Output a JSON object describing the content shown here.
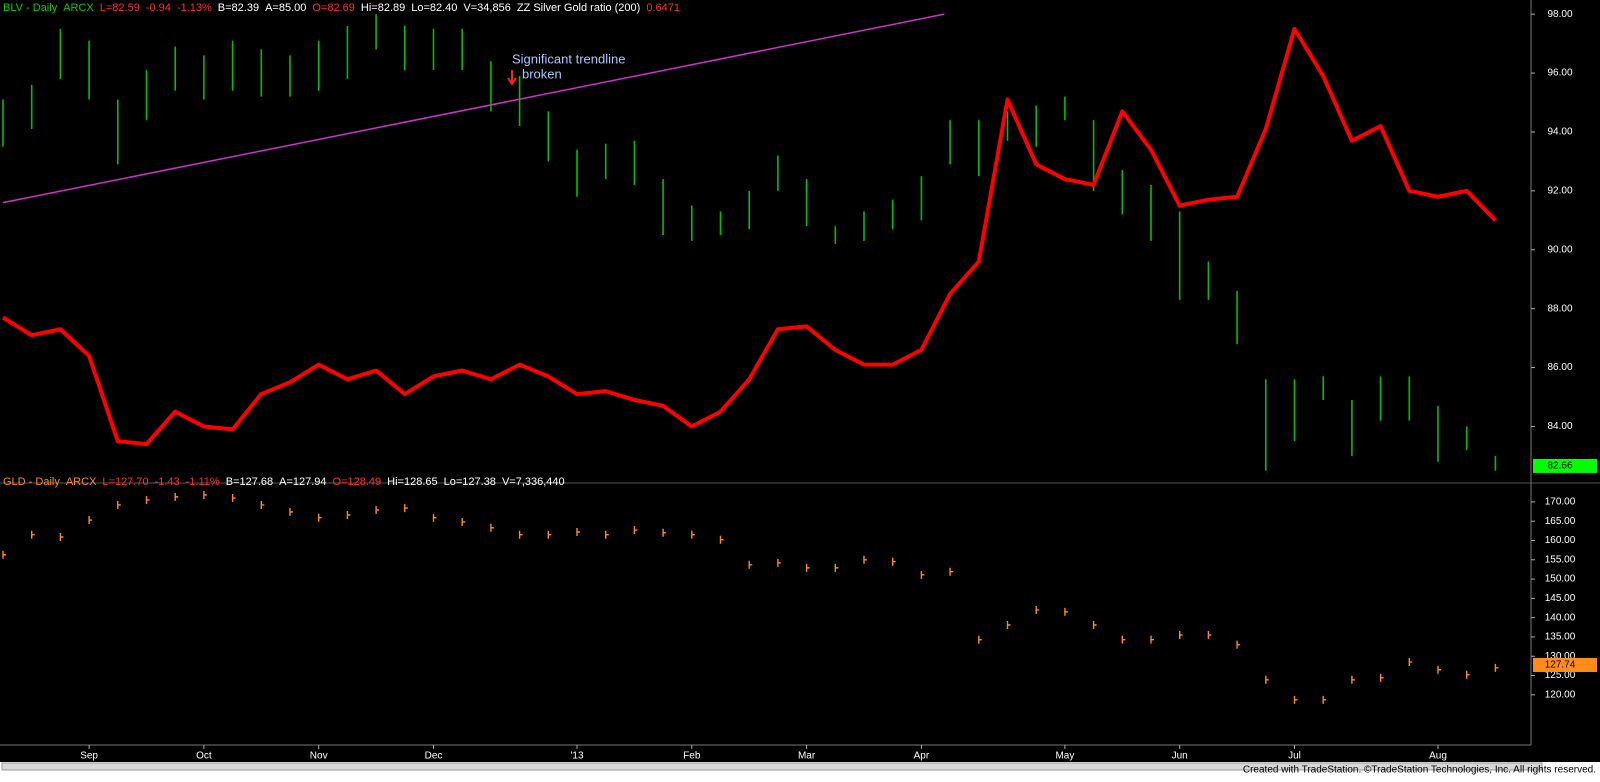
{
  "chart_data": [
    {
      "type": "price",
      "header": [
        {
          "text": "BLV - Daily",
          "color": "#00d000"
        },
        {
          "text": "ARCX",
          "color": "#00d000"
        },
        {
          "text": "L=82.59",
          "color": "#ff3030"
        },
        {
          "text": "-0.94",
          "color": "#ff3030"
        },
        {
          "text": "-1.13%",
          "color": "#ff3030"
        },
        {
          "text": "B=82.39",
          "color": "#ffffff"
        },
        {
          "text": "A=85.00",
          "color": "#ffffff"
        },
        {
          "text": "O=82.69",
          "color": "#ff3030"
        },
        {
          "text": "Hi=82.89",
          "color": "#ffffff"
        },
        {
          "text": "Lo=82.40",
          "color": "#ffffff"
        },
        {
          "text": "V=34,856",
          "color": "#ffffff"
        },
        {
          "text": "ZZ Silver Gold ratio (200)",
          "color": "#ffffff"
        },
        {
          "text": "0.6471",
          "color": "#ff3030"
        }
      ],
      "ylim": [
        82.25,
        98.48
      ],
      "yticks": [
        {
          "value": 98,
          "label": "98.00"
        },
        {
          "value": 96,
          "label": "96.00"
        },
        {
          "value": 94,
          "label": "94.00"
        },
        {
          "value": 92,
          "label": "92.00"
        },
        {
          "value": 90,
          "label": "90.00"
        },
        {
          "value": 88,
          "label": "88.00"
        },
        {
          "value": 86,
          "label": "86.00"
        },
        {
          "value": 84,
          "label": "84.00"
        }
      ],
      "last": 82.66,
      "last_color": "#00ff00",
      "annotation": [
        "Significant trendline",
        "broken"
      ],
      "trendline": {
        "x": [
          0,
          32.8
        ],
        "values": [
          91.6,
          98.0
        ],
        "color": "#cc33cc"
      },
      "series": [
        {
          "kind": "range",
          "color": "#00c000",
          "high": [
            95.1,
            95.6,
            97.5,
            97.1,
            95.1,
            96.1,
            96.9,
            96.6,
            97.1,
            96.8,
            96.6,
            97.1,
            97.6,
            98.0,
            97.6,
            97.5,
            97.5,
            96.4,
            95.9,
            94.7,
            93.4,
            93.6,
            93.7,
            92.4,
            91.5,
            91.3,
            92.0,
            93.2,
            92.4,
            90.8,
            91.3,
            91.7,
            92.5,
            94.4,
            94.4,
            94.7,
            94.9,
            95.2,
            94.4,
            92.7,
            92.2,
            91.3,
            89.6,
            88.6,
            85.6,
            85.6,
            85.7,
            84.9,
            85.7,
            85.7,
            84.7,
            84.0,
            83.0
          ],
          "low": [
            93.5,
            94.1,
            95.8,
            95.1,
            92.9,
            94.4,
            95.4,
            95.1,
            95.4,
            95.2,
            95.2,
            95.4,
            95.8,
            96.8,
            96.1,
            96.1,
            96.1,
            94.7,
            94.2,
            93.0,
            91.8,
            92.4,
            92.2,
            90.5,
            90.3,
            90.5,
            90.7,
            92.0,
            90.8,
            90.2,
            90.3,
            90.7,
            91.0,
            92.9,
            92.5,
            93.7,
            93.5,
            94.4,
            92.0,
            91.2,
            90.3,
            88.3,
            88.3,
            86.8,
            82.5,
            83.5,
            84.9,
            83.0,
            84.2,
            84.2,
            82.8,
            83.2,
            82.5
          ]
        },
        {
          "kind": "line",
          "color": "#ff0000",
          "values": [
            87.7,
            87.1,
            87.3,
            86.4,
            83.5,
            83.4,
            84.5,
            84.0,
            83.9,
            85.1,
            85.5,
            86.1,
            85.6,
            85.9,
            85.1,
            85.7,
            85.9,
            85.6,
            86.1,
            85.7,
            85.1,
            85.2,
            84.9,
            84.7,
            84.0,
            84.5,
            85.6,
            87.3,
            87.4,
            86.6,
            86.1,
            86.1,
            86.6,
            88.5,
            89.6,
            95.1,
            92.9,
            92.4,
            92.2,
            94.7,
            93.4,
            91.5,
            91.7,
            91.8,
            94.1,
            97.5,
            95.9,
            93.7,
            94.2,
            92.0,
            91.8,
            92.0,
            91.0
          ]
        }
      ]
    },
    {
      "type": "price",
      "header": [
        {
          "text": "GLD - Daily",
          "color": "#ff8c1a"
        },
        {
          "text": "ARCX",
          "color": "#ff8c1a"
        },
        {
          "text": "L=127.70",
          "color": "#ff3030"
        },
        {
          "text": "-1.43",
          "color": "#ff3030"
        },
        {
          "text": "-1.11%",
          "color": "#ff3030"
        },
        {
          "text": "B=127.68",
          "color": "#ffffff"
        },
        {
          "text": "A=127.94",
          "color": "#ffffff"
        },
        {
          "text": "O=128.49",
          "color": "#ff3030"
        },
        {
          "text": "Hi=128.65",
          "color": "#ffffff"
        },
        {
          "text": "Lo=127.38",
          "color": "#ffffff"
        },
        {
          "text": "V=7,336,440",
          "color": "#ffffff"
        }
      ],
      "ylim": [
        107.0,
        173.6
      ],
      "yticks": [
        {
          "value": 170,
          "label": "170.00"
        },
        {
          "value": 165,
          "label": "165.00"
        },
        {
          "value": 160,
          "label": "160.00"
        },
        {
          "value": 155,
          "label": "155.00"
        },
        {
          "value": 150,
          "label": "150.00"
        },
        {
          "value": 145,
          "label": "145.00"
        },
        {
          "value": 140,
          "label": "140.00"
        },
        {
          "value": 135,
          "label": "135.00"
        },
        {
          "value": 130,
          "label": "130.00"
        },
        {
          "value": 125,
          "label": "125.00"
        },
        {
          "value": 120,
          "label": "120.00"
        }
      ],
      "last": 127.74,
      "last_color": "#ff8c1a",
      "categories": [
        null,
        null,
        null,
        "Sep",
        null,
        null,
        null,
        "Oct",
        null,
        null,
        null,
        "Nov",
        null,
        null,
        null,
        "Dec",
        null,
        null,
        null,
        null,
        "'13",
        null,
        null,
        null,
        "Feb",
        null,
        null,
        null,
        "Mar",
        null,
        null,
        null,
        "Apr",
        null,
        null,
        null,
        null,
        "May",
        null,
        null,
        null,
        "Jun",
        null,
        null,
        null,
        "Jul",
        null,
        null,
        null,
        null,
        "Aug",
        null,
        null
      ],
      "series": [
        {
          "kind": "tick",
          "color": "#ff8c1a",
          "values": [
            156.3,
            161.5,
            160.9,
            165.3,
            169.2,
            170.5,
            171.3,
            171.8,
            171.0,
            169.2,
            167.4,
            165.9,
            166.6,
            167.9,
            168.4,
            165.9,
            164.8,
            163.3,
            161.5,
            161.5,
            162.2,
            161.5,
            162.7,
            162.0,
            161.5,
            160.2,
            153.7,
            154.2,
            152.9,
            152.9,
            155.0,
            154.5,
            151.1,
            151.9,
            134.3,
            138.1,
            142.0,
            141.5,
            138.1,
            134.3,
            134.3,
            135.5,
            135.5,
            133.0,
            123.9,
            118.7,
            118.7,
            123.9,
            124.4,
            128.5,
            126.5,
            125.2,
            127.0
          ]
        }
      ]
    }
  ],
  "footer": "Created with TradeStation. ©TradeStation Technologies, Inc. All rights reserved."
}
